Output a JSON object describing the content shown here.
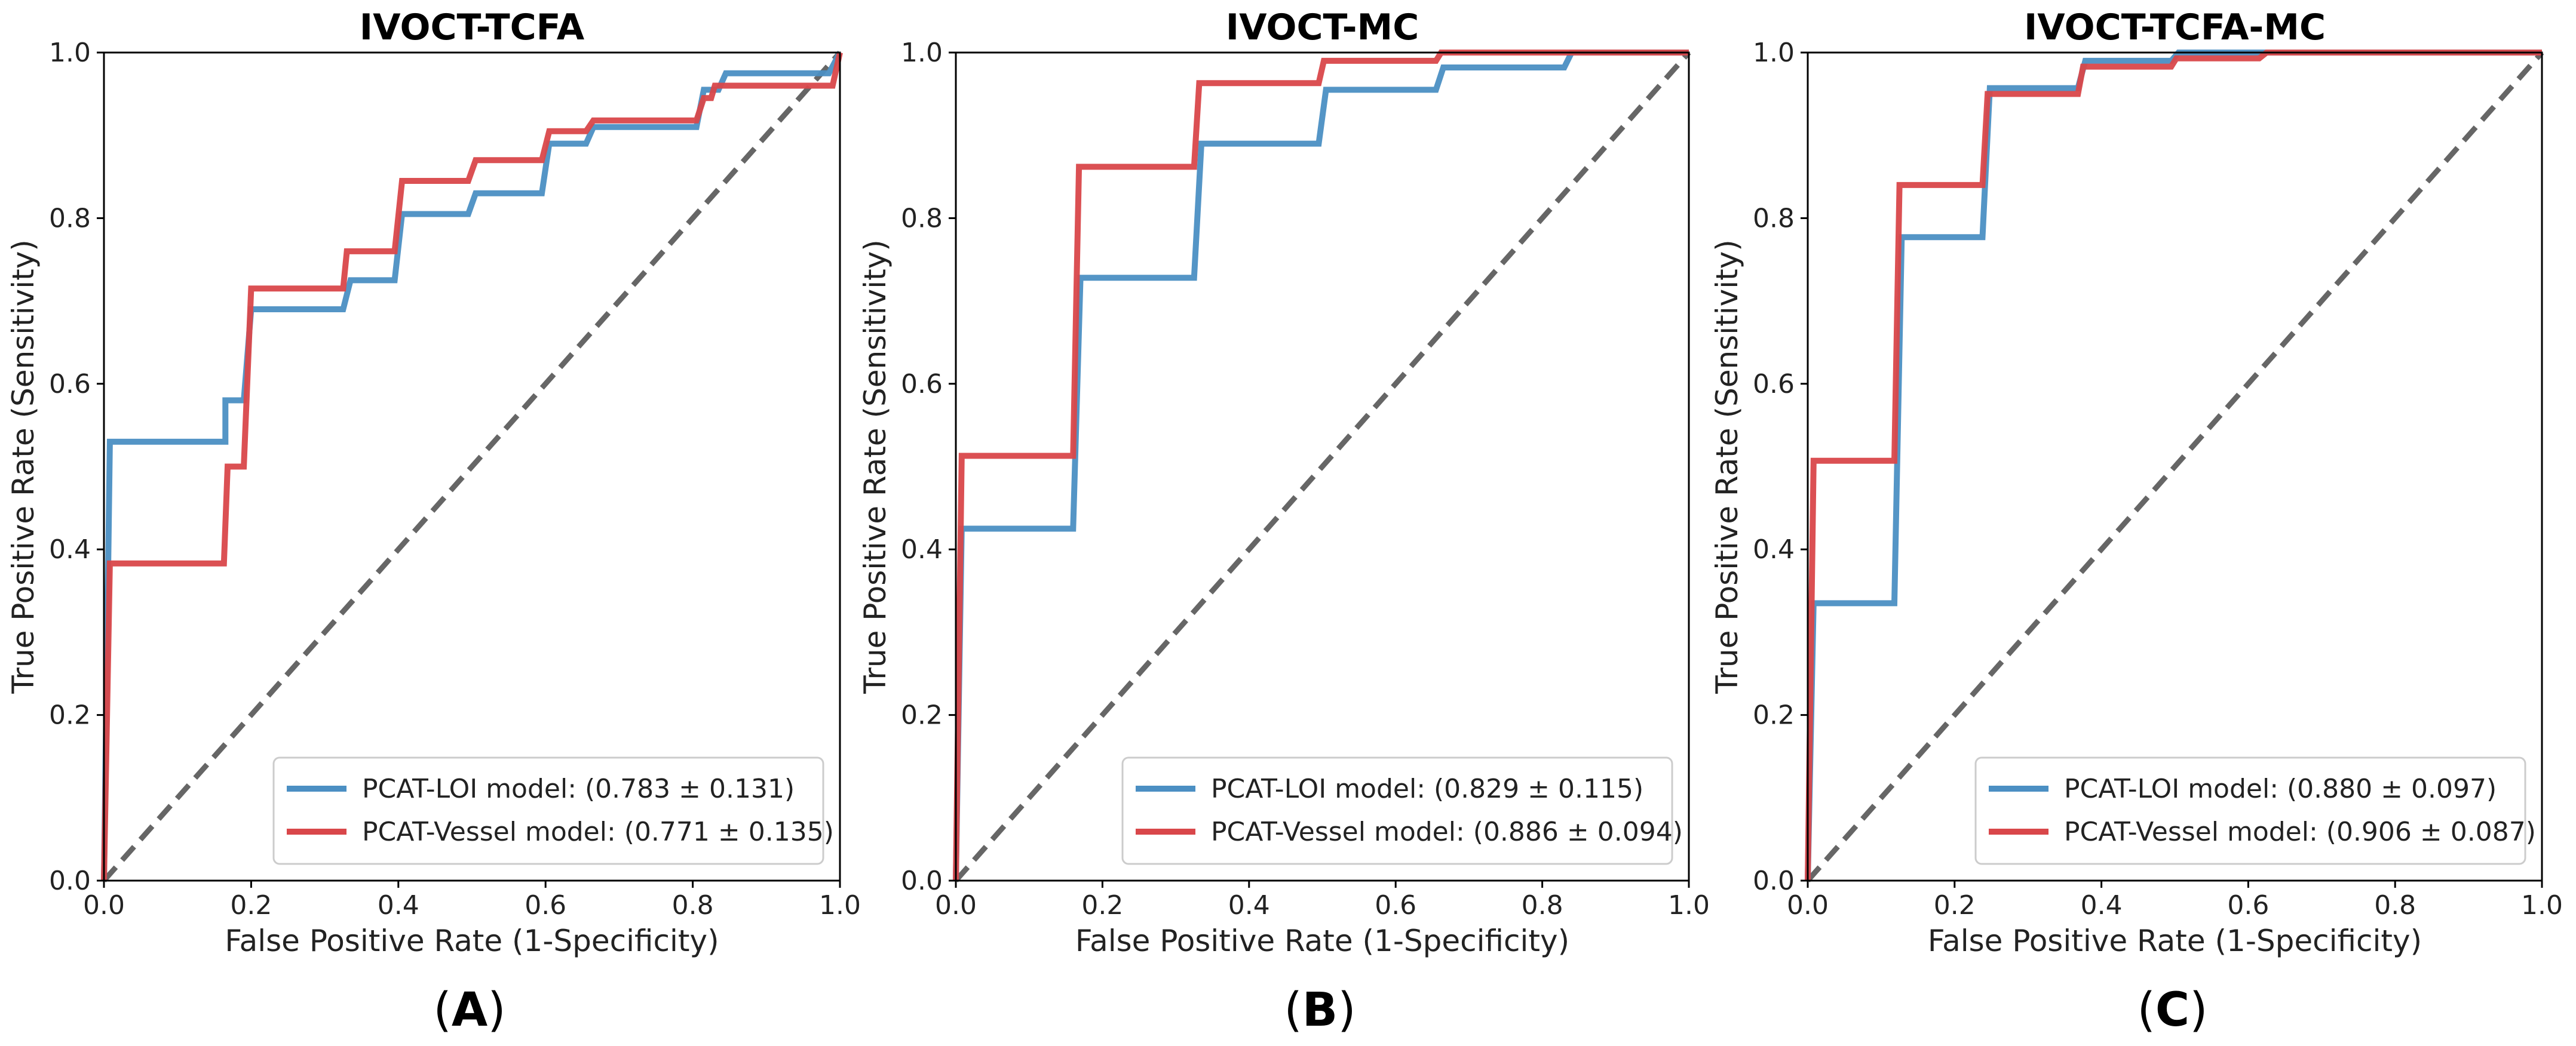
{
  "chart_data": [
    {
      "type": "line",
      "panel_label": "A",
      "title": "IVOCT-TCFA",
      "xlabel": "False Positive Rate (1-Specificity)",
      "ylabel": "True Positive Rate (Sensitivity)",
      "xlim": [
        0,
        1
      ],
      "ylim": [
        0,
        1
      ],
      "xticks": [
        "0.0",
        "0.2",
        "0.4",
        "0.6",
        "0.8",
        "1.0"
      ],
      "yticks": [
        "0.0",
        "0.2",
        "0.4",
        "0.6",
        "0.8",
        "1.0"
      ],
      "legend_position": "lower-right",
      "diagonal": "chance line (dashed grey)",
      "series": [
        {
          "name": "PCAT-LOI model: (0.783 ± 0.131)",
          "color": "#4b8fc3",
          "points": [
            [
              0,
              0
            ],
            [
              0.008,
              0.53
            ],
            [
              0.165,
              0.53
            ],
            [
              0.165,
              0.58
            ],
            [
              0.19,
              0.58
            ],
            [
              0.2,
              0.69
            ],
            [
              0.325,
              0.69
            ],
            [
              0.335,
              0.725
            ],
            [
              0.395,
              0.725
            ],
            [
              0.405,
              0.805
            ],
            [
              0.495,
              0.805
            ],
            [
              0.505,
              0.83
            ],
            [
              0.595,
              0.83
            ],
            [
              0.605,
              0.89
            ],
            [
              0.655,
              0.89
            ],
            [
              0.665,
              0.91
            ],
            [
              0.805,
              0.91
            ],
            [
              0.815,
              0.955
            ],
            [
              0.835,
              0.955
            ],
            [
              0.845,
              0.975
            ],
            [
              0.985,
              0.975
            ],
            [
              1,
              1
            ]
          ]
        },
        {
          "name": "PCAT-Vessel model: (0.771 ± 0.135)",
          "color": "#d9474a",
          "points": [
            [
              0,
              0
            ],
            [
              0.008,
              0.383
            ],
            [
              0.163,
              0.383
            ],
            [
              0.168,
              0.5
            ],
            [
              0.19,
              0.5
            ],
            [
              0.2,
              0.715
            ],
            [
              0.325,
              0.715
            ],
            [
              0.33,
              0.76
            ],
            [
              0.395,
              0.76
            ],
            [
              0.405,
              0.845
            ],
            [
              0.495,
              0.845
            ],
            [
              0.505,
              0.87
            ],
            [
              0.595,
              0.87
            ],
            [
              0.605,
              0.905
            ],
            [
              0.655,
              0.905
            ],
            [
              0.665,
              0.918
            ],
            [
              0.805,
              0.918
            ],
            [
              0.815,
              0.945
            ],
            [
              0.825,
              0.945
            ],
            [
              0.83,
              0.96
            ],
            [
              0.99,
              0.96
            ],
            [
              1,
              1
            ]
          ]
        }
      ]
    },
    {
      "type": "line",
      "panel_label": "B",
      "title": "IVOCT-MC",
      "xlabel": "False Positive Rate (1-Specificity)",
      "ylabel": "True Positive Rate (Sensitivity)",
      "xlim": [
        0,
        1
      ],
      "ylim": [
        0,
        1
      ],
      "xticks": [
        "0.0",
        "0.2",
        "0.4",
        "0.6",
        "0.8",
        "1.0"
      ],
      "yticks": [
        "0.0",
        "0.2",
        "0.4",
        "0.6",
        "0.8",
        "1.0"
      ],
      "legend_position": "lower-right",
      "diagonal": "chance line (dashed grey)",
      "series": [
        {
          "name": "PCAT-LOI model: (0.829 ± 0.115)",
          "color": "#4b8fc3",
          "points": [
            [
              0,
              0
            ],
            [
              0.008,
              0.425
            ],
            [
              0.16,
              0.425
            ],
            [
              0.17,
              0.728
            ],
            [
              0.325,
              0.728
            ],
            [
              0.335,
              0.89
            ],
            [
              0.495,
              0.89
            ],
            [
              0.505,
              0.955
            ],
            [
              0.655,
              0.955
            ],
            [
              0.665,
              0.982
            ],
            [
              0.83,
              0.982
            ],
            [
              0.84,
              1
            ],
            [
              1,
              1
            ]
          ]
        },
        {
          "name": "PCAT-Vessel model: (0.886 ± 0.094)",
          "color": "#d9474a",
          "points": [
            [
              0,
              0
            ],
            [
              0.008,
              0.513
            ],
            [
              0.16,
              0.513
            ],
            [
              0.168,
              0.862
            ],
            [
              0.325,
              0.862
            ],
            [
              0.332,
              0.963
            ],
            [
              0.495,
              0.963
            ],
            [
              0.502,
              0.99
            ],
            [
              0.655,
              0.99
            ],
            [
              0.662,
              1
            ],
            [
              1,
              1
            ]
          ]
        }
      ]
    },
    {
      "type": "line",
      "panel_label": "C",
      "title": "IVOCT-TCFA-MC",
      "xlabel": "False Positive Rate (1-Specificity)",
      "ylabel": "True Positive Rate (Sensitivity)",
      "xlim": [
        0,
        1
      ],
      "ylim": [
        0,
        1
      ],
      "xticks": [
        "0.0",
        "0.2",
        "0.4",
        "0.6",
        "0.8",
        "1.0"
      ],
      "yticks": [
        "0.0",
        "0.2",
        "0.4",
        "0.6",
        "0.8",
        "1.0"
      ],
      "legend_position": "lower-right",
      "diagonal": "chance line (dashed grey)",
      "series": [
        {
          "name": "PCAT-LOI model: (0.880 ± 0.097)",
          "color": "#4b8fc3",
          "points": [
            [
              0,
              0
            ],
            [
              0.008,
              0.335
            ],
            [
              0.118,
              0.335
            ],
            [
              0.128,
              0.777
            ],
            [
              0.238,
              0.777
            ],
            [
              0.248,
              0.957
            ],
            [
              0.368,
              0.957
            ],
            [
              0.378,
              0.99
            ],
            [
              0.495,
              0.99
            ],
            [
              0.505,
              1
            ],
            [
              1,
              1
            ]
          ]
        },
        {
          "name": "PCAT-Vessel model: (0.906 ± 0.087)",
          "color": "#d9474a",
          "points": [
            [
              0,
              0
            ],
            [
              0.008,
              0.507
            ],
            [
              0.118,
              0.507
            ],
            [
              0.125,
              0.84
            ],
            [
              0.238,
              0.84
            ],
            [
              0.245,
              0.95
            ],
            [
              0.368,
              0.95
            ],
            [
              0.375,
              0.983
            ],
            [
              0.495,
              0.983
            ],
            [
              0.502,
              0.993
            ],
            [
              0.615,
              0.993
            ],
            [
              0.625,
              1
            ],
            [
              1,
              1
            ]
          ]
        }
      ]
    }
  ]
}
